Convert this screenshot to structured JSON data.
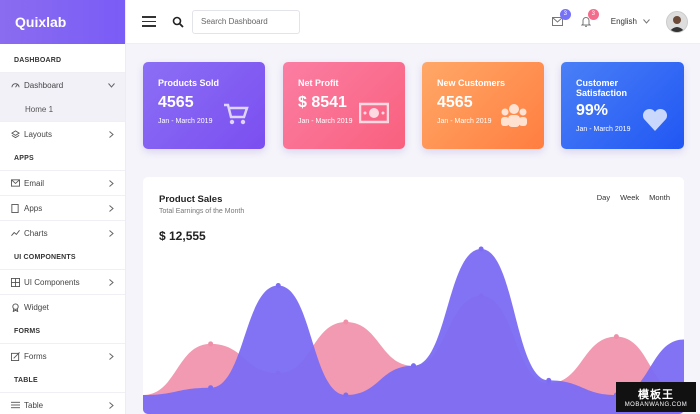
{
  "brand": {
    "name": "Quixlab"
  },
  "sidebar": {
    "items": [
      {
        "type": "section",
        "label": "DASHBOARD"
      },
      {
        "type": "item",
        "label": "Dashboard",
        "icon": "speedometer-icon",
        "chevron": "down",
        "active": true
      },
      {
        "type": "sub",
        "label": "Home 1"
      },
      {
        "type": "item",
        "label": "Layouts",
        "icon": "layers-icon",
        "chevron": "right"
      },
      {
        "type": "section",
        "label": "APPS"
      },
      {
        "type": "item",
        "label": "Email",
        "icon": "envelope-icon",
        "chevron": "right"
      },
      {
        "type": "item",
        "label": "Apps",
        "icon": "notebook-icon",
        "chevron": "right"
      },
      {
        "type": "item",
        "label": "Charts",
        "icon": "graph-icon",
        "chevron": "right"
      },
      {
        "type": "section",
        "label": "UI COMPONENTS"
      },
      {
        "type": "item",
        "label": "UI Components",
        "icon": "grid-icon",
        "chevron": "right"
      },
      {
        "type": "item",
        "label": "Widget",
        "icon": "badge-icon",
        "chevron": ""
      },
      {
        "type": "section",
        "label": "FORMS"
      },
      {
        "type": "item",
        "label": "Forms",
        "icon": "note-icon",
        "chevron": "right"
      },
      {
        "type": "section",
        "label": "TABLE"
      },
      {
        "type": "item",
        "label": "Table",
        "icon": "menu-icon",
        "chevron": "right"
      }
    ]
  },
  "header": {
    "search_placeholder": "Search Dashboard",
    "notifications": [
      {
        "icon": "envelope-icon",
        "count": "3",
        "color": "#7571f9"
      },
      {
        "icon": "bell-icon",
        "count": "3",
        "color": "#f36c8c"
      }
    ],
    "language": "English"
  },
  "cards": [
    {
      "title": "Products Sold",
      "value": "4565",
      "date": "Jan - March 2019",
      "icon": "cart-icon"
    },
    {
      "title": "Net Profit",
      "value": "$ 8541",
      "date": "Jan - March 2019",
      "icon": "money-icon"
    },
    {
      "title": "New Customers",
      "value": "4565",
      "date": "Jan - March 2019",
      "icon": "users-icon"
    },
    {
      "title": "Customer Satisfaction",
      "value": "99%",
      "date": "Jan - March 2019",
      "icon": "heart-icon"
    }
  ],
  "panel": {
    "title": "Product Sales",
    "subtitle": "Total Earnings of the Month",
    "total": "$ 12,555",
    "ranges": [
      "Day",
      "Week",
      "Month"
    ]
  },
  "chart_data": {
    "type": "area",
    "x": [
      0,
      1,
      2,
      3,
      4,
      5,
      6,
      7,
      8
    ],
    "series": [
      {
        "values": [
          0,
          35,
          15,
          50,
          20,
          68,
          8,
          40,
          0
        ],
        "color": "#f08fa8"
      },
      {
        "values": [
          0,
          5,
          75,
          0,
          20,
          100,
          10,
          0,
          38
        ],
        "color": "#7b6cf4"
      }
    ],
    "ylim": [
      0,
      100
    ],
    "grid": false
  },
  "watermark": {
    "line1": "模板王",
    "line2": "MOBANWANG.COM"
  }
}
